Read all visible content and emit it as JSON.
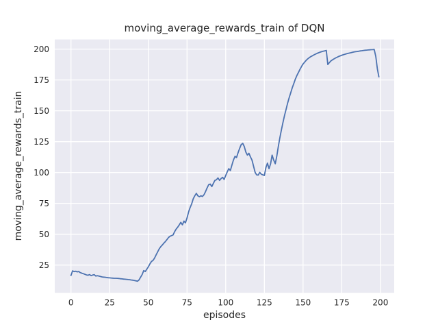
{
  "figure": {
    "background": "#ffffff",
    "axes_background": "#eaeaf2",
    "grid_color": "#ffffff",
    "text_color": "#262626"
  },
  "chart_data": {
    "type": "line",
    "title": "moving_average_rewards_train of DQN",
    "xlabel": "episodes",
    "ylabel": "moving_average_rewards_train",
    "line_color": "#4c72b0",
    "line_width": 1.8,
    "grid": true,
    "legend": false,
    "xlim": [
      -10.5,
      208.9
    ],
    "ylim": [
      2.5,
      207.8
    ],
    "x_ticks": [
      0,
      25,
      50,
      75,
      100,
      125,
      150,
      175,
      200
    ],
    "y_ticks": [
      25,
      50,
      75,
      100,
      125,
      150,
      175,
      200
    ],
    "x_range": [
      0,
      199
    ],
    "series": [
      {
        "name": "moving_average_rewards_train",
        "x_is_episode_index": true,
        "values": [
          16.5,
          20.3,
          19.7,
          20.0,
          19.5,
          19.8,
          18.9,
          18.4,
          18.0,
          17.5,
          17.0,
          16.7,
          17.3,
          16.4,
          16.9,
          17.2,
          16.1,
          16.4,
          16.1,
          15.7,
          15.4,
          15.2,
          15.1,
          14.9,
          14.7,
          14.6,
          14.5,
          14.4,
          14.3,
          14.3,
          14.2,
          14.1,
          13.9,
          13.8,
          13.6,
          13.5,
          13.4,
          13.2,
          13.1,
          12.9,
          12.7,
          12.5,
          12.2,
          11.9,
          13.0,
          15.2,
          17.3,
          20.5,
          19.8,
          21.6,
          23.6,
          25.9,
          27.9,
          28.8,
          30.6,
          33.2,
          35.6,
          38.1,
          39.9,
          41.2,
          42.7,
          44.0,
          45.6,
          47.3,
          48.3,
          48.9,
          49.4,
          52.1,
          54.2,
          55.7,
          57.6,
          59.6,
          57.6,
          60.6,
          59.2,
          63.2,
          68.1,
          71.6,
          74.6,
          78.6,
          81.1,
          83.1,
          81.1,
          80.4,
          81.1,
          80.6,
          82.1,
          84.6,
          87.6,
          90.1,
          90.6,
          88.6,
          91.1,
          93.6,
          94.1,
          95.6,
          93.6,
          95.1,
          96.1,
          94.4,
          97.6,
          100.6,
          103.1,
          101.6,
          106.1,
          110.1,
          113.1,
          112.1,
          116.1,
          119.6,
          122.6,
          123.6,
          121.1,
          116.6,
          114.1,
          115.6,
          112.6,
          110.1,
          105.1,
          100.1,
          98.1,
          97.9,
          100.1,
          98.6,
          98.1,
          97.6,
          104.1,
          107.6,
          103.1,
          107.1,
          114.1,
          110.1,
          107.1,
          113.1,
          121.1,
          128.1,
          134.6,
          140.6,
          146.1,
          151.1,
          156.1,
          160.6,
          164.6,
          168.6,
          172.1,
          175.6,
          178.6,
          181.1,
          183.6,
          185.9,
          187.9,
          189.4,
          190.9,
          192.1,
          193.1,
          193.9,
          194.6,
          195.3,
          195.9,
          196.5,
          197.0,
          197.5,
          197.9,
          198.3,
          198.6,
          198.9,
          187.5,
          189.1,
          190.4,
          191.3,
          192.1,
          192.8,
          193.4,
          194.0,
          194.5,
          195.0,
          195.4,
          195.8,
          196.2,
          196.5,
          196.8,
          197.1,
          197.4,
          197.7,
          197.9,
          198.1,
          198.3,
          198.5,
          198.7,
          198.9,
          199.1,
          199.2,
          199.3,
          199.4,
          199.5,
          199.6,
          199.7,
          194.0,
          184.0,
          177.5
        ]
      }
    ]
  }
}
